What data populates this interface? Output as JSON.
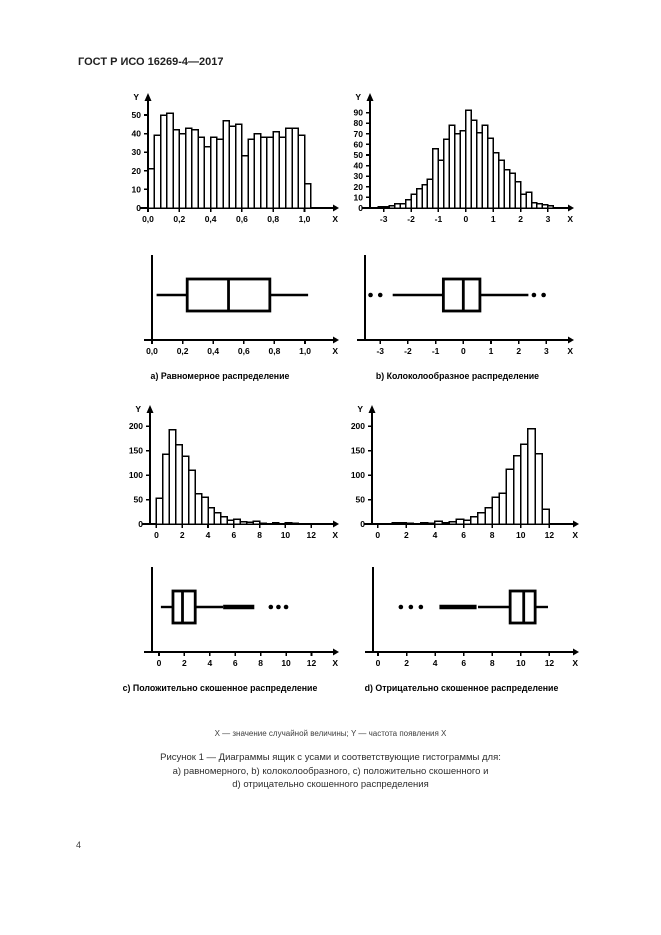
{
  "header": {
    "title": "ГОСТ Р ИСО 16269-4—2017"
  },
  "page_number": "4",
  "figure": {
    "footnote": "X — значение случайной величины; Y — частота появления X",
    "caption_line1": "Рисунок 1 — Диаграммы ящик с усами и соответствующие гистограммы для:",
    "caption_line2": "a) равномерного, b) колоколообразного, c) положительно скошенного и",
    "caption_line3": "d) отрицательно скошенного распределения"
  },
  "panels": {
    "a": {
      "label": "a) Равномерное распределение"
    },
    "b": {
      "label": "b) Колоколообразное распределение"
    },
    "c": {
      "label": "c) Положительно скошенное распределение"
    },
    "d": {
      "label": "d) Отрицательно скошенное распределение"
    }
  },
  "chart_data": [
    {
      "id": "hist_a",
      "type": "histogram",
      "title": "uniform distribution histogram",
      "xlabel": "X",
      "ylabel": "Y",
      "bin_start": 0,
      "bin_width": 0.04,
      "values": [
        21,
        39,
        50,
        51,
        42,
        40,
        43,
        42,
        38,
        33,
        38,
        37,
        47,
        44,
        45,
        28,
        37,
        40,
        38,
        38,
        41,
        38,
        43,
        43,
        39,
        13
      ],
      "xlim": [
        0,
        1.15
      ],
      "ylim": [
        0,
        57
      ],
      "yticks": [
        {
          "v": 0,
          "label": "0"
        },
        {
          "v": 10,
          "label": "10"
        },
        {
          "v": 20,
          "label": "20"
        },
        {
          "v": 30,
          "label": "30"
        },
        {
          "v": 40,
          "label": "40"
        },
        {
          "v": 50,
          "label": "50"
        }
      ],
      "xticks": [
        {
          "v": 0,
          "label": "0,0"
        },
        {
          "v": 0.2,
          "label": "0,2"
        },
        {
          "v": 0.4,
          "label": "0,4"
        },
        {
          "v": 0.6,
          "label": "0,6"
        },
        {
          "v": 0.8,
          "label": "0,8"
        },
        {
          "v": 1.0,
          "label": "1,0"
        }
      ]
    },
    {
      "id": "hist_b",
      "type": "histogram",
      "title": "bell-shaped distribution histogram",
      "xlabel": "X",
      "ylabel": "Y",
      "bin_start": -3.2,
      "bin_width": 0.2,
      "values": [
        1,
        1,
        2,
        4,
        4,
        8,
        13,
        18,
        22,
        27,
        56,
        45,
        65,
        78,
        70,
        73,
        92,
        83,
        71,
        78,
        66,
        52,
        45,
        36,
        33,
        25,
        13,
        15,
        5,
        4,
        3,
        2
      ],
      "xlim": [
        -3.5,
        3.55
      ],
      "ylim": [
        0,
        100
      ],
      "yticks": [
        {
          "v": 0,
          "label": "0"
        },
        {
          "v": 10,
          "label": "10"
        },
        {
          "v": 20,
          "label": "20"
        },
        {
          "v": 30,
          "label": "30"
        },
        {
          "v": 40,
          "label": "40"
        },
        {
          "v": 50,
          "label": "50"
        },
        {
          "v": 60,
          "label": "60"
        },
        {
          "v": 70,
          "label": "70"
        },
        {
          "v": 80,
          "label": "80"
        },
        {
          "v": 90,
          "label": "90"
        }
      ],
      "xticks": [
        {
          "v": -3,
          "label": "-3"
        },
        {
          "v": -2,
          "label": "-2"
        },
        {
          "v": -1,
          "label": "-1"
        },
        {
          "v": 0,
          "label": "0"
        },
        {
          "v": 1,
          "label": "1"
        },
        {
          "v": 2,
          "label": "2"
        },
        {
          "v": 3,
          "label": "3"
        }
      ]
    },
    {
      "id": "hist_c",
      "type": "histogram",
      "title": "positively skewed distribution histogram",
      "xlabel": "X",
      "ylabel": "Y",
      "bin_start": 0,
      "bin_width": 0.5,
      "values": [
        53,
        143,
        193,
        162,
        139,
        110,
        62,
        55,
        33,
        23,
        15,
        8,
        10,
        5,
        4,
        6,
        2,
        0,
        3,
        0,
        3,
        2
      ],
      "xlim": [
        -0.5,
        13.3
      ],
      "ylim": [
        0,
        225
      ],
      "yticks": [
        {
          "v": 0,
          "label": "0"
        },
        {
          "v": 50,
          "label": "50"
        },
        {
          "v": 100,
          "label": "100"
        },
        {
          "v": 150,
          "label": "150"
        },
        {
          "v": 200,
          "label": "200"
        }
      ],
      "xticks": [
        {
          "v": 0,
          "label": "0"
        },
        {
          "v": 2,
          "label": "2"
        },
        {
          "v": 4,
          "label": "4"
        },
        {
          "v": 6,
          "label": "6"
        },
        {
          "v": 8,
          "label": "8"
        },
        {
          "v": 10,
          "label": "10"
        },
        {
          "v": 12,
          "label": "12"
        }
      ]
    },
    {
      "id": "hist_d",
      "type": "histogram",
      "title": "negatively skewed distribution histogram",
      "xlabel": "X",
      "ylabel": "Y",
      "bin_start": 1.0,
      "bin_width": 0.5,
      "values": [
        3,
        3,
        2,
        0,
        3,
        2,
        6,
        3,
        5,
        10,
        8,
        15,
        23,
        33,
        55,
        63,
        112,
        140,
        163,
        195,
        144,
        30
      ],
      "xlim": [
        -0.4,
        13.3
      ],
      "ylim": [
        0,
        225
      ],
      "yticks": [
        {
          "v": 0,
          "label": "0"
        },
        {
          "v": 50,
          "label": "50"
        },
        {
          "v": 100,
          "label": "100"
        },
        {
          "v": 150,
          "label": "150"
        },
        {
          "v": 200,
          "label": "200"
        }
      ],
      "xticks": [
        {
          "v": 0,
          "label": "0"
        },
        {
          "v": 2,
          "label": "2"
        },
        {
          "v": 4,
          "label": "4"
        },
        {
          "v": 6,
          "label": "6"
        },
        {
          "v": 8,
          "label": "8"
        },
        {
          "v": 10,
          "label": "10"
        },
        {
          "v": 12,
          "label": "12"
        }
      ]
    },
    {
      "id": "box_a",
      "type": "boxplot",
      "title": "uniform distribution box plot",
      "xlabel": "X",
      "whisker_low": 0.03,
      "q1": 0.23,
      "median": 0.5,
      "q3": 0.77,
      "whisker_high": 1.02,
      "outliers": [],
      "dense_runs": [],
      "xlim": [
        0,
        1.15
      ],
      "xticks": [
        {
          "v": 0,
          "label": "0,0"
        },
        {
          "v": 0.2,
          "label": "0,2"
        },
        {
          "v": 0.4,
          "label": "0,4"
        },
        {
          "v": 0.6,
          "label": "0,6"
        },
        {
          "v": 0.8,
          "label": "0,8"
        },
        {
          "v": 1.0,
          "label": "1,0"
        }
      ]
    },
    {
      "id": "box_b",
      "type": "boxplot",
      "title": "bell-shaped distribution box plot",
      "xlabel": "X",
      "whisker_low": -2.55,
      "q1": -0.72,
      "median": 0.0,
      "q3": 0.6,
      "whisker_high": 2.35,
      "outliers": [
        -3.35,
        -3.0,
        2.55,
        2.9
      ],
      "dense_runs": [],
      "xlim": [
        -3.55,
        3.6
      ],
      "xticks": [
        {
          "v": -3,
          "label": "-3"
        },
        {
          "v": -2,
          "label": "-2"
        },
        {
          "v": -1,
          "label": "-1"
        },
        {
          "v": 0,
          "label": "0"
        },
        {
          "v": 1,
          "label": "1"
        },
        {
          "v": 2,
          "label": "2"
        },
        {
          "v": 3,
          "label": "3"
        }
      ]
    },
    {
      "id": "box_c",
      "type": "boxplot",
      "title": "positively skewed distribution box plot",
      "xlabel": "X",
      "whisker_low": 0.15,
      "q1": 1.1,
      "median": 1.85,
      "q3": 2.85,
      "whisker_high": 5.05,
      "outliers": [
        8.8,
        9.4,
        10.0
      ],
      "dense_runs": [
        [
          5.05,
          7.5
        ]
      ],
      "xlim": [
        -0.55,
        13.3
      ],
      "xticks": [
        {
          "v": 0,
          "label": "0"
        },
        {
          "v": 2,
          "label": "2"
        },
        {
          "v": 4,
          "label": "4"
        },
        {
          "v": 6,
          "label": "6"
        },
        {
          "v": 8,
          "label": "8"
        },
        {
          "v": 10,
          "label": "10"
        },
        {
          "v": 12,
          "label": "12"
        }
      ]
    },
    {
      "id": "box_d",
      "type": "boxplot",
      "title": "negatively skewed distribution box plot",
      "xlabel": "X",
      "whisker_low": 7.0,
      "q1": 9.25,
      "median": 10.2,
      "q3": 11.0,
      "whisker_high": 11.9,
      "outliers": [
        1.6,
        2.3,
        3.0
      ],
      "dense_runs": [
        [
          4.3,
          6.9
        ]
      ],
      "xlim": [
        -0.35,
        13.3
      ],
      "xticks": [
        {
          "v": 0,
          "label": "0"
        },
        {
          "v": 2,
          "label": "2"
        },
        {
          "v": 4,
          "label": "4"
        },
        {
          "v": 6,
          "label": "6"
        },
        {
          "v": 8,
          "label": "8"
        },
        {
          "v": 10,
          "label": "10"
        },
        {
          "v": 12,
          "label": "12"
        }
      ]
    }
  ]
}
